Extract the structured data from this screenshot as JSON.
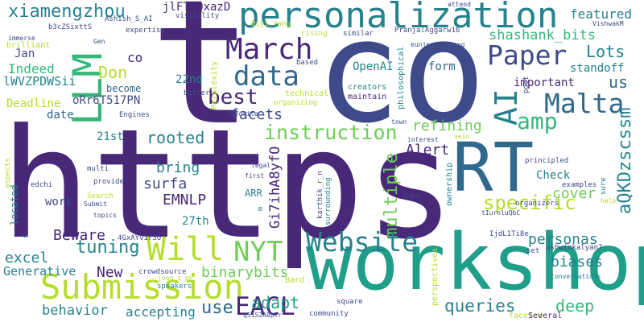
{
  "palette": {
    "dark_purple": "#482878",
    "indigo": "#3e4a89",
    "blue": "#31688e",
    "teal": "#26828e",
    "green_teal": "#1f9e89",
    "green": "#35b779",
    "light_green": "#6ece58",
    "yellow_green": "#b5de2b",
    "background": "#ffffff"
  },
  "words": {
    "https": "https",
    "t": "t",
    "co": "co",
    "workshop": "workshop",
    "RT": "RT",
    "personalization": "personalization",
    "LLM": "LLM",
    "Submission": "Submission",
    "March": "March",
    "data": "data",
    "Paper": "Paper",
    "Malta": "Malta",
    "AI": "AI",
    "amp": "amp",
    "Will": "Will",
    "NYT": "NYT",
    "Website": "Website",
    "EACL": "EACL",
    "xiamengzhou": "xiamengzhou",
    "instruction": "instruction",
    "best": "best",
    "specific": "specific",
    "shashank_bits": "shashank_bits",
    "Lots": "Lots",
    "us": "us",
    "featured": "featured",
    "Don": "Don",
    "Indeed": "Indeed",
    "co_small": "co",
    "Beware": "Beware",
    "tuning": "tuning",
    "binarybits": "binarybits",
    "queries": "queries",
    "adapt": "adapt",
    "use": "use",
    "deep": "deep",
    "personas": "personas",
    "biases": "biases",
    "cover": "cover",
    "rooted": "rooted",
    "facets": "facets",
    "refining": "refining",
    "Alert": "Alert",
    "multiple": "multiple",
    "bring": "bring",
    "surfa": "surfa",
    "EMNLP": "EMNLP",
    "New": "New",
    "excel": "excel",
    "behavior": "behavior",
    "accepting": "accepting",
    "Generative": "Generative",
    "aQKDzscssm": "aQKDzscssm",
    "Gi7ihA8yfO": "Gi7ihA8yfO",
    "jlFT9QxazD": "jlFT9QxazD",
    "lWVZPDWSii": "lWVZPDWSii",
    "oRr6T517PN": "oRr6T517PN",
    "OpenAI": "OpenAI",
    "form": "form",
    "important": "important",
    "standoff": "standoff",
    "Check": "Check",
    "ARR": "ARR",
    "27th": "27th",
    "21st": "21st",
    "22nd": "22nd",
    "Deadline": "Deadline",
    "date": "date",
    "work": "work",
    "become": "become",
    "Jan": "Jan",
    "Perplexity": "Perplexity",
    "located": "located",
    "philosophical": "philosophical",
    "creators": "creators",
    "maintain": "maintain",
    "Bard": "Bard",
    "square": "square",
    "faceted": "faceted",
    "Several": "Several",
    "community": "community",
    "speakers": "speakers",
    "crowdsource": "crowdsource",
    "joon_s_pk": "joon_s_pk",
    "q5152A8pTr": "q5152A8pTr",
    "perspectives": "perspectives",
    "4GxAYvir3O": "4GxAYvir3O",
    "eunjeong_hwang": "eunjeong_hwang",
    "PranjalAggarw16": "PranjalAggarw16",
    "Diyi_Yang": "Diyi_Yang",
    "rising": "rising",
    "similar": "similar",
    "visibility": "visibility",
    "attend": "attend",
    "Ashish_S_AI": "Ashish_S_AI",
    "b3cZSixttS": "b3cZSixttS",
    "Gen": "Gen",
    "expertise": "expertise",
    "immerse": "immerse",
    "brilliant": "brilliant",
    "VishwakM": "VishwakM",
    "based": "based",
    "technical": "technical",
    "organizing": "organizing",
    "better": "better",
    "favorite": "favorite",
    "Engines": "Engines",
    "town": "town",
    "post": "post",
    "vein": "vein",
    "interest": "interest",
    "principled": "principled",
    "examples": "examples",
    "organizers": "organizers",
    "sure": "sure",
    "help": "help",
    "ownership": "ownership",
    "karthik_r_n": "karthik_r_n",
    "surrounding": "surrounding",
    "tIurnluQbC": "tIurnluQbC",
    "IjdL1Ti8e": "IjdL1Ti8e",
    "set": "set",
    "ashwinkalyan7": "ashwinkalyan7",
    "conversations": "conversations",
    "ones": "ones",
    "first": "first",
    "legal": "legal",
    "m": "m",
    "multi": "multi",
    "edchi": "edchi",
    "aspects": "aspects",
    "provide": "provide",
    "Search": "Search",
    "Submit": "Submit",
    "topics": "topics",
    "s": "s"
  }
}
